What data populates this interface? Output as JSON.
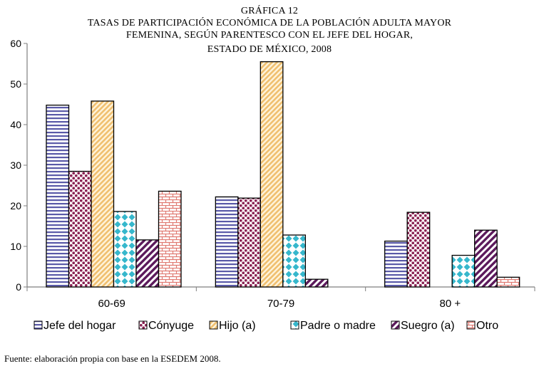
{
  "chart_data": {
    "type": "bar",
    "title": [
      "GRÁFICA 12",
      "TASAS DE PARTICIPACIÓN ECONÓMICA DE LA POBLACIÓN ADULTA MAYOR",
      "FEMENINA, SEGÚN PARENTESCO CON EL JEFE DEL HOGAR,",
      "ESTADO DE MÉXICO, 2008"
    ],
    "categories": [
      "60-69",
      "70-79",
      "80 +"
    ],
    "ylim": [
      0,
      60
    ],
    "yticks": [
      0,
      10,
      20,
      30,
      40,
      50,
      60
    ],
    "grid": false,
    "legend_position": "bottom",
    "series": [
      {
        "name": "Jefe del hogar",
        "values": [
          44.8,
          22.2,
          11.3
        ]
      },
      {
        "name": "Cónyuge",
        "values": [
          28.5,
          21.9,
          18.4
        ]
      },
      {
        "name": "Hijo (a)",
        "values": [
          45.8,
          55.5,
          null
        ]
      },
      {
        "name": "Padre o madre",
        "values": [
          18.6,
          12.8,
          7.8
        ]
      },
      {
        "name": "Suegro (a)",
        "values": [
          11.6,
          1.9,
          14.0
        ]
      },
      {
        "name": "Otro",
        "values": [
          23.6,
          null,
          2.4
        ]
      }
    ],
    "source": "Fuente: elaboración propia con base en la ESEDEM 2008.",
    "colors": {
      "jefe": "#5a5aa8",
      "conyuge": "#8a2252",
      "hijo": "#f5cf8a",
      "padre": "#36b7cc",
      "suegro": "#5c1a5c",
      "otro": "#e07a72"
    }
  }
}
